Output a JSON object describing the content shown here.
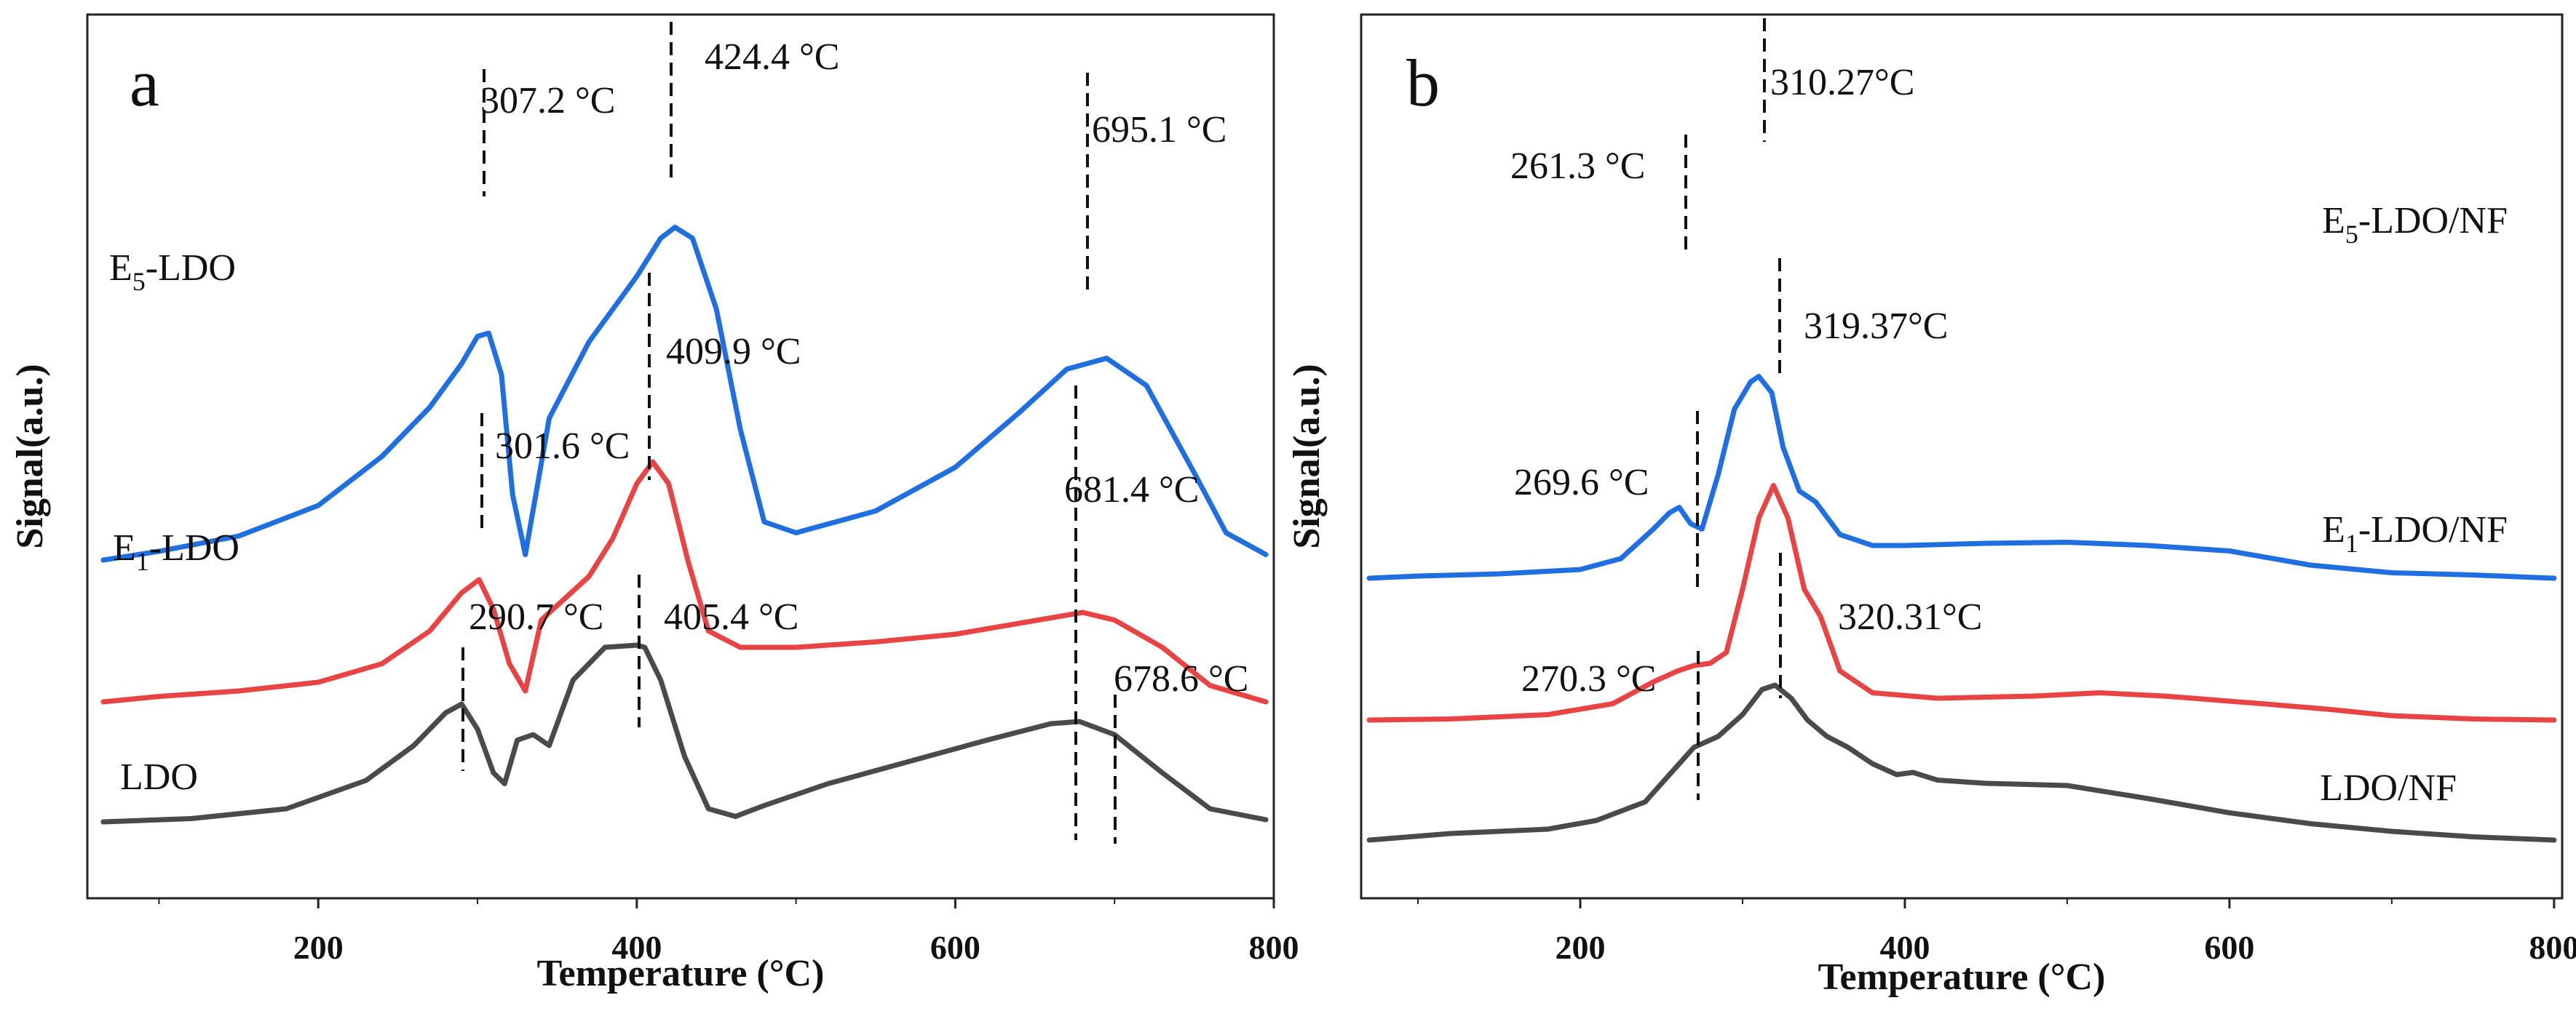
{
  "colors": {
    "blue": "#1f6fe0",
    "red": "#e84444",
    "gray": "#4a4a4a"
  },
  "chart_data": [
    {
      "type": "line",
      "panel_label": "a",
      "xlabel": "Temperature (°C)",
      "ylabel": "Signal(a.u.)",
      "xlim": [
        55,
        800
      ],
      "x_ticks": [
        200,
        400,
        600,
        800
      ],
      "y_ticks": "none",
      "grid": false,
      "series": [
        {
          "name": "E5-LDO",
          "label_main": "E",
          "label_sub": "5",
          "label_rest": "-LDO",
          "color": "#1f6fe0",
          "offset": 2.4,
          "x": [
            65,
            100,
            150,
            200,
            240,
            270,
            290,
            300,
            307,
            315,
            322,
            330,
            345,
            370,
            400,
            415,
            424,
            435,
            450,
            465,
            480,
            500,
            550,
            600,
            640,
            670,
            695,
            720,
            750,
            770,
            795
          ],
          "y": [
            0.0,
            0.08,
            0.22,
            0.5,
            0.95,
            1.4,
            1.8,
            2.05,
            2.08,
            1.7,
            0.6,
            0.05,
            1.3,
            2.0,
            2.6,
            2.95,
            3.05,
            2.95,
            2.3,
            1.2,
            0.35,
            0.25,
            0.45,
            0.85,
            1.35,
            1.75,
            1.85,
            1.6,
            0.8,
            0.25,
            0.05
          ]
        },
        {
          "name": "E1-LDO",
          "label_main": "E",
          "label_sub": "1",
          "label_rest": "-LDO",
          "color": "#e84444",
          "offset": 1.1,
          "x": [
            65,
            100,
            150,
            200,
            240,
            270,
            290,
            301,
            310,
            320,
            330,
            340,
            355,
            370,
            385,
            400,
            410,
            420,
            432,
            445,
            465,
            500,
            550,
            600,
            640,
            680,
            700,
            730,
            760,
            795
          ],
          "y": [
            0.0,
            0.05,
            0.1,
            0.18,
            0.35,
            0.65,
            1.0,
            1.12,
            0.85,
            0.35,
            0.1,
            0.75,
            0.95,
            1.15,
            1.5,
            2.0,
            2.2,
            2.0,
            1.3,
            0.65,
            0.5,
            0.5,
            0.55,
            0.62,
            0.72,
            0.82,
            0.75,
            0.5,
            0.15,
            0.0
          ]
        },
        {
          "name": "LDO",
          "label_main": "LDO",
          "label_sub": "",
          "label_rest": "",
          "color": "#4a4a4a",
          "offset": 0,
          "x": [
            65,
            120,
            180,
            230,
            260,
            280,
            290,
            300,
            310,
            317,
            325,
            335,
            345,
            360,
            380,
            400,
            405,
            415,
            430,
            445,
            462,
            480,
            520,
            570,
            620,
            660,
            678,
            700,
            730,
            760,
            795
          ],
          "y": [
            0.0,
            0.03,
            0.12,
            0.38,
            0.7,
            1.0,
            1.08,
            0.85,
            0.45,
            0.35,
            0.75,
            0.8,
            0.7,
            1.3,
            1.6,
            1.62,
            1.6,
            1.3,
            0.6,
            0.12,
            0.05,
            0.15,
            0.35,
            0.55,
            0.75,
            0.9,
            0.92,
            0.8,
            0.45,
            0.12,
            0.02
          ]
        }
      ],
      "annotations": [
        {
          "text": "307.2 °C",
          "x": 307,
          "series": 0
        },
        {
          "text": "424.4 °C",
          "x": 424,
          "series": 0
        },
        {
          "text": "695.1 °C",
          "x": 695,
          "series": 0
        },
        {
          "text": "409.9 °C",
          "x": 410,
          "series": 1
        },
        {
          "text": "301.6 °C",
          "x": 301,
          "series": 1
        },
        {
          "text": "681.4 °C",
          "x": 681,
          "series": 1
        },
        {
          "text": "290.7 °C",
          "x": 290,
          "series": 2
        },
        {
          "text": "405.4 °C",
          "x": 405,
          "series": 2
        },
        {
          "text": "678.6 °C",
          "x": 678,
          "series": 2
        }
      ]
    },
    {
      "type": "line",
      "panel_label": "b",
      "xlabel": "Temperature (°C)",
      "ylabel": "Signal(a.u.)",
      "xlim": [
        65,
        805
      ],
      "x_ticks": [
        200,
        400,
        600,
        800
      ],
      "y_ticks": "none",
      "grid": false,
      "series": [
        {
          "name": "E5-LDO/NF",
          "label_main": "E",
          "label_sub": "5",
          "label_rest": "-LDO/NF",
          "color": "#1f6fe0",
          "offset": 2.4,
          "x": [
            70,
            100,
            150,
            200,
            225,
            245,
            255,
            261,
            268,
            275,
            285,
            295,
            305,
            310,
            318,
            325,
            335,
            345,
            360,
            380,
            400,
            450,
            500,
            550,
            600,
            650,
            700,
            750,
            800
          ],
          "y": [
            0.0,
            0.02,
            0.04,
            0.08,
            0.18,
            0.45,
            0.6,
            0.65,
            0.5,
            0.45,
            0.95,
            1.55,
            1.8,
            1.85,
            1.7,
            1.2,
            0.8,
            0.7,
            0.4,
            0.3,
            0.3,
            0.32,
            0.33,
            0.3,
            0.25,
            0.12,
            0.05,
            0.03,
            0.0
          ]
        },
        {
          "name": "E1-LDO/NF",
          "label_main": "E",
          "label_sub": "1",
          "label_rest": "-LDO/NF",
          "color": "#e84444",
          "offset": 1.1,
          "x": [
            70,
            120,
            180,
            220,
            245,
            260,
            270,
            280,
            290,
            300,
            310,
            319,
            328,
            338,
            348,
            360,
            380,
            420,
            480,
            520,
            560,
            620,
            660,
            700,
            750,
            800
          ],
          "y": [
            0.0,
            0.01,
            0.05,
            0.15,
            0.35,
            0.45,
            0.5,
            0.52,
            0.62,
            1.2,
            1.85,
            2.15,
            1.85,
            1.2,
            0.95,
            0.45,
            0.25,
            0.2,
            0.22,
            0.25,
            0.22,
            0.15,
            0.1,
            0.04,
            0.01,
            0.0
          ]
        },
        {
          "name": "LDO/NF",
          "label_main": "LDO/NF",
          "label_sub": "",
          "label_rest": "",
          "color": "#4a4a4a",
          "offset": 0,
          "x": [
            70,
            120,
            180,
            210,
            240,
            255,
            270,
            285,
            300,
            312,
            320,
            330,
            340,
            352,
            365,
            380,
            395,
            405,
            420,
            450,
            500,
            550,
            600,
            650,
            700,
            750,
            800
          ],
          "y": [
            0.0,
            0.06,
            0.1,
            0.18,
            0.35,
            0.6,
            0.85,
            0.95,
            1.15,
            1.38,
            1.42,
            1.3,
            1.1,
            0.95,
            0.85,
            0.7,
            0.6,
            0.62,
            0.55,
            0.52,
            0.5,
            0.38,
            0.25,
            0.15,
            0.08,
            0.03,
            0.0
          ]
        }
      ],
      "annotations": [
        {
          "text": "310.27°C",
          "x": 310,
          "series": 0
        },
        {
          "text": "261.3 °C",
          "x": 261,
          "series": 0
        },
        {
          "text": "319.37°C",
          "x": 319,
          "series": 1
        },
        {
          "text": "269.6 °C",
          "x": 269,
          "series": 1
        },
        {
          "text": "320.31°C",
          "x": 320,
          "series": 2
        },
        {
          "text": "270.3 °C",
          "x": 270,
          "series": 2
        }
      ]
    }
  ]
}
